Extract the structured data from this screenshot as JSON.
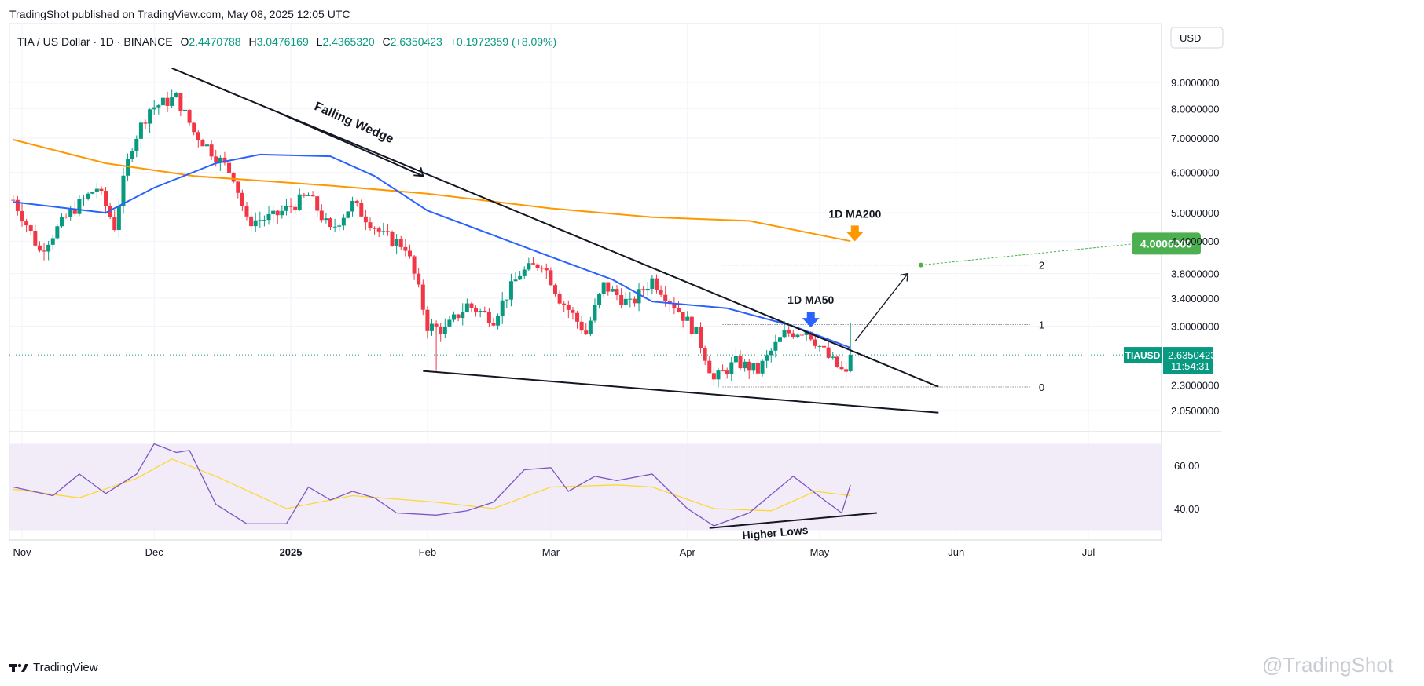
{
  "header": {
    "published_by": "TradingShot published on TradingView.com, May 08, 2025 12:05 UTC"
  },
  "ohlc": {
    "symbol": "TIA / US Dollar · 1D · BINANCE",
    "o_label": "O",
    "o_value": "2.4470788",
    "h_label": "H",
    "h_value": "3.0476169",
    "l_label": "L",
    "l_value": "2.4365320",
    "c_label": "C",
    "c_value": "2.6350423",
    "change": "+0.1972359 (+8.09%)"
  },
  "footer": {
    "logo_text": "TradingView",
    "watermark": "@TradingShot"
  },
  "colors": {
    "up": "#089981",
    "down": "#f23645",
    "ma50": "#2962ff",
    "ma200": "#ff9800",
    "rsi": "#7e57c2",
    "rsi_ma": "#fdd835",
    "rsi_band": "#ede7f6",
    "target": "#4caf50"
  },
  "chart_data": {
    "type": "candlestick",
    "currency_label": "USD",
    "price_axis": {
      "scale": "log",
      "range": [
        1.85,
        11.5
      ],
      "tick_labels": [
        "9.0000000",
        "8.0000000",
        "7.0000000",
        "6.0000000",
        "5.0000000",
        "4.4000000",
        "3.8000000",
        "3.4000000",
        "3.0000000",
        "2.3000000",
        "2.0500000"
      ]
    },
    "time_axis": {
      "tick_labels": [
        "Nov",
        "Dec",
        "2025",
        "Feb",
        "Mar",
        "Apr",
        "May",
        "Jun",
        "Jul"
      ]
    },
    "last_price": {
      "symbol": "TIAUSD",
      "price": "2.6350423",
      "countdown": "11:54:31",
      "value": 2.635
    },
    "ma200": {
      "label": "1D MA200",
      "points": [
        [
          "2024-10-30",
          6.95
        ],
        [
          "2024-11-20",
          6.25
        ],
        [
          "2024-12-10",
          5.9
        ],
        [
          "2025-01-10",
          5.65
        ],
        [
          "2025-02-01",
          5.45
        ],
        [
          "2025-03-01",
          5.1
        ],
        [
          "2025-03-24",
          4.9
        ],
        [
          "2025-04-15",
          4.82
        ],
        [
          "2025-05-08",
          4.4
        ]
      ]
    },
    "ma50": {
      "label": "1D MA50",
      "points": [
        [
          "2024-10-30",
          5.25
        ],
        [
          "2024-11-20",
          5.0
        ],
        [
          "2024-12-01",
          5.6
        ],
        [
          "2024-12-15",
          6.25
        ],
        [
          "2024-12-25",
          6.5
        ],
        [
          "2025-01-10",
          6.45
        ],
        [
          "2025-01-20",
          5.9
        ],
        [
          "2025-02-01",
          5.05
        ],
        [
          "2025-02-15",
          4.55
        ],
        [
          "2025-03-01",
          4.1
        ],
        [
          "2025-03-15",
          3.7
        ],
        [
          "2025-03-24",
          3.35
        ],
        [
          "2025-04-10",
          3.25
        ],
        [
          "2025-04-25",
          3.0
        ],
        [
          "2025-05-08",
          2.72
        ]
      ]
    },
    "rsi": {
      "levels": [
        "60.00",
        "40.00"
      ],
      "band": [
        30,
        70
      ],
      "points": [
        [
          "2024-10-30",
          50
        ],
        [
          "2024-11-08",
          46
        ],
        [
          "2024-11-14",
          56
        ],
        [
          "2024-11-20",
          47
        ],
        [
          "2024-11-27",
          56
        ],
        [
          "2024-12-01",
          70
        ],
        [
          "2024-12-06",
          66
        ],
        [
          "2024-12-09",
          67
        ],
        [
          "2024-12-15",
          42
        ],
        [
          "2024-12-22",
          33
        ],
        [
          "2024-12-31",
          33
        ],
        [
          "2025-01-05",
          50
        ],
        [
          "2025-01-10",
          44
        ],
        [
          "2025-01-15",
          48
        ],
        [
          "2025-01-20",
          45
        ],
        [
          "2025-01-25",
          38
        ],
        [
          "2025-02-03",
          37
        ],
        [
          "2025-02-10",
          39
        ],
        [
          "2025-02-16",
          43
        ],
        [
          "2025-02-23",
          58
        ],
        [
          "2025-03-01",
          59
        ],
        [
          "2025-03-05",
          48
        ],
        [
          "2025-03-11",
          55
        ],
        [
          "2025-03-16",
          53
        ],
        [
          "2025-03-24",
          56
        ],
        [
          "2025-04-01",
          40
        ],
        [
          "2025-04-07",
          32
        ],
        [
          "2025-04-15",
          38
        ],
        [
          "2025-04-25",
          55
        ],
        [
          "2025-05-02",
          44
        ],
        [
          "2025-05-06",
          38
        ],
        [
          "2025-05-08",
          51
        ]
      ],
      "ma_points": [
        [
          "2024-10-30",
          49
        ],
        [
          "2024-11-14",
          45
        ],
        [
          "2024-11-27",
          54
        ],
        [
          "2024-12-05",
          63
        ],
        [
          "2024-12-15",
          55
        ],
        [
          "2024-12-31",
          40
        ],
        [
          "2025-01-15",
          46
        ],
        [
          "2025-02-03",
          43
        ],
        [
          "2025-02-16",
          40
        ],
        [
          "2025-03-01",
          50
        ],
        [
          "2025-03-16",
          51
        ],
        [
          "2025-03-24",
          50
        ],
        [
          "2025-04-07",
          40
        ],
        [
          "2025-04-20",
          39
        ],
        [
          "2025-04-30",
          48
        ],
        [
          "2025-05-08",
          46
        ]
      ]
    },
    "annotations": {
      "pattern_label": "Falling Wedge",
      "rsi_label": "Higher Lows",
      "target_label": "4.0000000",
      "fib": [
        {
          "label": "2",
          "price": 3.95
        },
        {
          "label": "1",
          "price": 3.02
        },
        {
          "label": "0",
          "price": 2.28
        }
      ],
      "wedge_upper": [
        [
          "2024-12-05",
          9.6
        ],
        [
          "2025-05-28",
          2.28
        ]
      ],
      "wedge_lower": [
        [
          "2025-01-31",
          2.45
        ],
        [
          "2025-05-28",
          2.03
        ]
      ],
      "pattern_arrow": [
        [
          "2024-12-30",
          7.8
        ],
        [
          "2025-01-31",
          5.9
        ]
      ],
      "rsi_trend": [
        [
          "2025-04-06",
          31
        ],
        [
          "2025-05-14",
          38
        ]
      ],
      "breakout_arrow": [
        [
          "2025-05-09",
          2.8
        ],
        [
          "2025-05-21",
          3.8
        ]
      ]
    }
  }
}
